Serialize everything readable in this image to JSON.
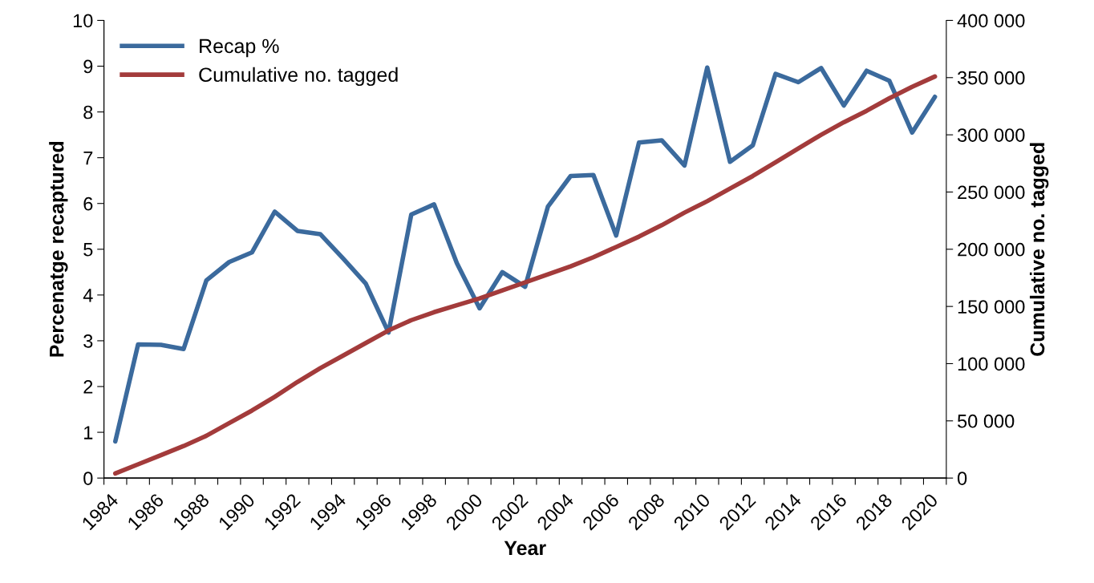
{
  "chart_data": {
    "type": "line",
    "xlabel": "Year",
    "ylabel": "Percenatge recaptured",
    "y2label": "Cumulative no. tagged",
    "categories": [
      "1984",
      null,
      "1986",
      null,
      "1988",
      null,
      "1990",
      null,
      "1992",
      null,
      "1994",
      null,
      "1996",
      null,
      "1998",
      null,
      "2000",
      null,
      "2002",
      null,
      "2004",
      null,
      "2006",
      null,
      "2008",
      null,
      "2010",
      null,
      "2012",
      null,
      "2014",
      null,
      "2016",
      null,
      "2018",
      null,
      "2020"
    ],
    "series": [
      {
        "name": "Recap %",
        "color": "#3b6a9d",
        "values": [
          0.8,
          2.92,
          2.91,
          2.82,
          4.32,
          4.72,
          4.93,
          5.82,
          5.4,
          5.33,
          4.8,
          4.25,
          3.18,
          5.76,
          5.98,
          4.7,
          3.71,
          4.5,
          4.18,
          5.93,
          6.6,
          6.62,
          5.3,
          7.33,
          7.38,
          6.83,
          8.97,
          6.91,
          7.27,
          8.83,
          8.65,
          8.96,
          8.14,
          8.9,
          8.68,
          7.55,
          8.33
        ]
      },
      {
        "name": "Cumulative no. tagged",
        "color": "#a33b3b",
        "axis": "y2",
        "values": [
          4000,
          12000,
          20000,
          28000,
          37000,
          48000,
          59000,
          71000,
          84000,
          96000,
          107000,
          118000,
          129000,
          138000,
          145000,
          151000,
          157000,
          164000,
          171000,
          178000,
          185000,
          193000,
          202000,
          211000,
          221000,
          232000,
          242000,
          253000,
          264000,
          276000,
          288000,
          300000,
          311000,
          321000,
          332000,
          342000,
          351000
        ]
      }
    ],
    "ylim": [
      0,
      10
    ],
    "yticks": [
      0,
      1,
      2,
      3,
      4,
      5,
      6,
      7,
      8,
      9,
      10
    ],
    "y2lim": [
      0,
      400000
    ],
    "y2ticks": [
      0,
      {
        "value": 50000,
        "label": "50 000"
      },
      {
        "value": 100000,
        "label": "100 000"
      },
      {
        "value": 150000,
        "label": "150 000"
      },
      {
        "value": 200000,
        "label": "200 000"
      },
      {
        "value": 250000,
        "label": "250 000"
      },
      {
        "value": 300000,
        "label": "300 000"
      },
      {
        "value": 350000,
        "label": "350 000"
      },
      {
        "value": 400000,
        "label": "400 000"
      }
    ],
    "grid": false,
    "legend": "top left",
    "marker": "none",
    "line_style": "solid"
  }
}
